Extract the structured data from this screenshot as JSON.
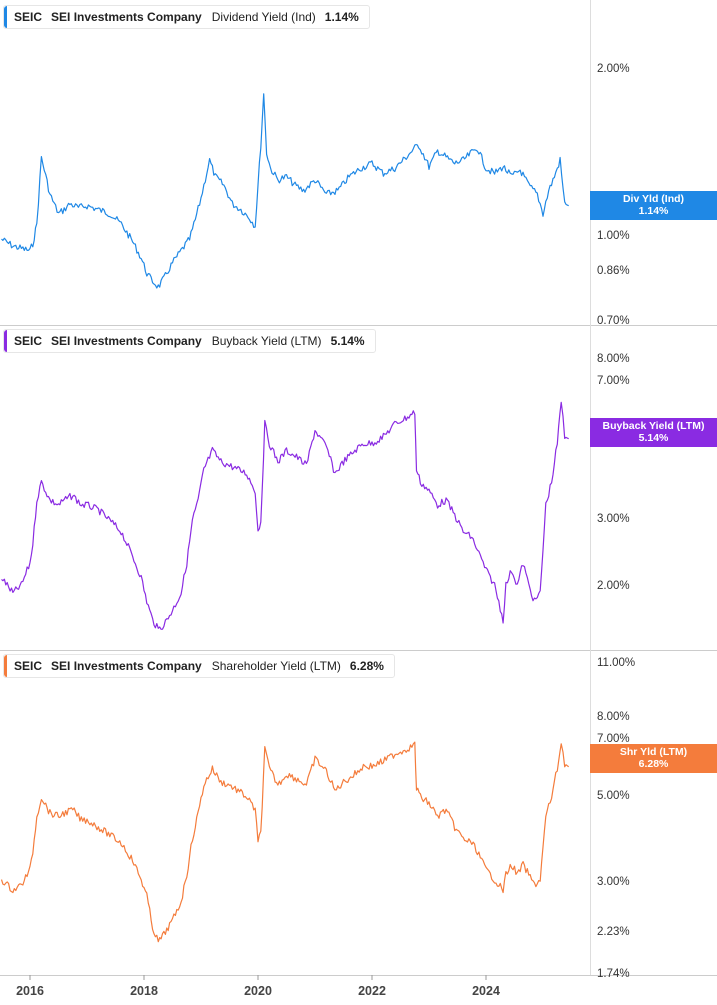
{
  "panels": [
    {
      "ticker": "SEIC",
      "company": "SEI Investments Company",
      "metric": "Dividend Yield (Ind)",
      "value": "1.14%",
      "color": "#1f88e5",
      "axis_ticks": [
        "2.00%",
        "1.00%",
        "0.86%",
        "0.70%"
      ],
      "badge": {
        "line1": "Div Yld (Ind)",
        "line2": "1.14%"
      }
    },
    {
      "ticker": "SEIC",
      "company": "SEI Investments Company",
      "metric": "Buyback Yield (LTM)",
      "value": "5.14%",
      "color": "#8a2be2",
      "axis_ticks": [
        "8.00%",
        "7.00%",
        "3.00%",
        "2.00%"
      ],
      "badge": {
        "line1": "Buyback Yield (LTM)",
        "line2": "5.14%"
      }
    },
    {
      "ticker": "SEIC",
      "company": "SEI Investments Company",
      "metric": "Shareholder Yield (LTM)",
      "value": "6.28%",
      "color": "#f47c3c",
      "axis_ticks": [
        "11.00%",
        "8.00%",
        "7.00%",
        "5.00%",
        "3.00%",
        "2.23%",
        "1.74%"
      ],
      "badge": {
        "line1": "Shr Yld (LTM)",
        "line2": "6.28%"
      }
    }
  ],
  "x_axis_labels": [
    "2016",
    "2018",
    "2020",
    "2022",
    "2024"
  ],
  "chart_data": [
    {
      "type": "line",
      "title": "SEIC SEI Investments Company Dividend Yield (Ind)",
      "y_scale": "log",
      "ylim": [
        0.68,
        2.5
      ],
      "x": [
        2015.5,
        2015.7,
        2015.85,
        2016.0,
        2016.05,
        2016.12,
        2016.2,
        2016.35,
        2016.5,
        2016.6,
        2016.7,
        2016.85,
        2017.0,
        2017.2,
        2017.4,
        2017.6,
        2017.8,
        2017.95,
        2018.05,
        2018.15,
        2018.25,
        2018.35,
        2018.5,
        2018.65,
        2018.8,
        2018.9,
        2019.0,
        2019.15,
        2019.25,
        2019.4,
        2019.55,
        2019.7,
        2019.85,
        2019.95,
        2020.05,
        2020.1,
        2020.15,
        2020.22,
        2020.35,
        2020.5,
        2020.65,
        2020.8,
        2021.0,
        2021.2,
        2021.4,
        2021.6,
        2021.8,
        2022.0,
        2022.2,
        2022.4,
        2022.6,
        2022.75,
        2022.82,
        2022.9,
        2023.0,
        2023.15,
        2023.3,
        2023.45,
        2023.6,
        2023.75,
        2023.85,
        2024.0,
        2024.15,
        2024.3,
        2024.45,
        2024.6,
        2024.75,
        2024.9,
        2025.0,
        2025.1,
        2025.2,
        2025.3,
        2025.38,
        2025.45
      ],
      "series": [
        {
          "values": [
            0.98,
            0.95,
            0.94,
            0.93,
            0.96,
            1.05,
            1.42,
            1.2,
            1.1,
            1.12,
            1.15,
            1.13,
            1.14,
            1.12,
            1.1,
            1.05,
            0.97,
            0.9,
            0.84,
            0.81,
            0.79,
            0.82,
            0.88,
            0.93,
            0.98,
            1.07,
            1.18,
            1.4,
            1.3,
            1.25,
            1.15,
            1.12,
            1.08,
            1.04,
            1.5,
            1.9,
            1.45,
            1.35,
            1.28,
            1.3,
            1.25,
            1.22,
            1.28,
            1.2,
            1.22,
            1.3,
            1.35,
            1.38,
            1.32,
            1.35,
            1.42,
            1.48,
            1.5,
            1.44,
            1.36,
            1.46,
            1.42,
            1.38,
            1.4,
            1.45,
            1.48,
            1.35,
            1.32,
            1.36,
            1.3,
            1.34,
            1.25,
            1.2,
            1.1,
            1.22,
            1.3,
            1.4,
            1.15,
            1.14
          ]
        }
      ]
    },
    {
      "type": "line",
      "title": "SEIC SEI Investments Company Buyback Yield (LTM)",
      "y_scale": "log",
      "ylim": [
        1.6,
        8.5
      ],
      "x": [
        2015.5,
        2015.7,
        2015.85,
        2016.0,
        2016.05,
        2016.12,
        2016.2,
        2016.35,
        2016.5,
        2016.6,
        2016.75,
        2016.9,
        2017.0,
        2017.2,
        2017.4,
        2017.6,
        2017.8,
        2017.95,
        2018.05,
        2018.15,
        2018.25,
        2018.35,
        2018.5,
        2018.65,
        2018.75,
        2018.85,
        2018.95,
        2019.05,
        2019.2,
        2019.35,
        2019.5,
        2019.65,
        2019.8,
        2019.95,
        2020.0,
        2020.05,
        2020.12,
        2020.2,
        2020.35,
        2020.5,
        2020.7,
        2020.85,
        2021.0,
        2021.2,
        2021.35,
        2021.5,
        2021.7,
        2021.85,
        2022.0,
        2022.2,
        2022.4,
        2022.6,
        2022.75,
        2022.78,
        2022.85,
        2023.0,
        2023.15,
        2023.3,
        2023.45,
        2023.6,
        2023.75,
        2023.85,
        2024.0,
        2024.15,
        2024.3,
        2024.35,
        2024.45,
        2024.55,
        2024.65,
        2024.75,
        2024.85,
        2024.95,
        2025.05,
        2025.15,
        2025.25,
        2025.32,
        2025.38,
        2025.45
      ],
      "series": [
        {
          "values": [
            2.3,
            2.1,
            2.2,
            2.5,
            2.8,
            3.6,
            4.0,
            3.6,
            3.5,
            3.6,
            3.7,
            3.5,
            3.5,
            3.4,
            3.2,
            3.0,
            2.6,
            2.3,
            2.0,
            1.8,
            1.7,
            1.75,
            1.9,
            2.1,
            2.5,
            3.2,
            3.6,
            4.3,
            4.8,
            4.5,
            4.4,
            4.3,
            4.2,
            3.8,
            3.0,
            3.2,
            5.6,
            5.0,
            4.5,
            4.8,
            4.6,
            4.4,
            5.4,
            4.9,
            4.2,
            4.5,
            4.8,
            5.0,
            5.0,
            5.2,
            5.6,
            5.8,
            6.0,
            4.3,
            4.0,
            3.8,
            3.5,
            3.6,
            3.3,
            3.0,
            2.9,
            2.7,
            2.4,
            2.2,
            1.8,
            2.2,
            2.4,
            2.2,
            2.5,
            2.2,
            2.0,
            2.1,
            3.5,
            4.0,
            5.0,
            6.4,
            5.2,
            5.14
          ]
        }
      ]
    },
    {
      "type": "line",
      "title": "SEIC SEI Investments Company Shareholder Yield (LTM)",
      "y_scale": "log",
      "ylim": [
        1.74,
        11.0
      ],
      "x": [
        2015.5,
        2015.7,
        2015.85,
        2016.0,
        2016.05,
        2016.12,
        2016.2,
        2016.35,
        2016.5,
        2016.6,
        2016.75,
        2016.9,
        2017.0,
        2017.2,
        2017.4,
        2017.6,
        2017.8,
        2017.95,
        2018.05,
        2018.15,
        2018.25,
        2018.35,
        2018.5,
        2018.65,
        2018.75,
        2018.85,
        2018.95,
        2019.05,
        2019.2,
        2019.35,
        2019.5,
        2019.65,
        2019.8,
        2019.95,
        2020.0,
        2020.05,
        2020.12,
        2020.2,
        2020.35,
        2020.5,
        2020.7,
        2020.85,
        2021.0,
        2021.2,
        2021.35,
        2021.5,
        2021.7,
        2021.85,
        2022.0,
        2022.2,
        2022.4,
        2022.6,
        2022.75,
        2022.78,
        2022.85,
        2023.0,
        2023.15,
        2023.3,
        2023.45,
        2023.6,
        2023.75,
        2023.85,
        2024.0,
        2024.15,
        2024.3,
        2024.35,
        2024.45,
        2024.55,
        2024.65,
        2024.75,
        2024.85,
        2024.95,
        2025.05,
        2025.15,
        2025.25,
        2025.32,
        2025.38,
        2025.45
      ],
      "series": [
        {
          "values": [
            3.1,
            2.9,
            3.0,
            3.3,
            3.7,
            4.6,
            5.2,
            4.7,
            4.6,
            4.7,
            4.8,
            4.5,
            4.5,
            4.3,
            4.1,
            3.9,
            3.5,
            3.1,
            2.8,
            2.3,
            2.1,
            2.2,
            2.4,
            2.7,
            3.2,
            4.0,
            4.7,
            5.6,
            6.2,
            5.7,
            5.6,
            5.4,
            5.2,
            4.8,
            3.9,
            4.2,
            7.0,
            6.2,
            5.6,
            6.0,
            5.8,
            5.6,
            6.6,
            6.1,
            5.4,
            5.7,
            6.0,
            6.3,
            6.3,
            6.5,
            6.8,
            7.0,
            7.2,
            5.5,
            5.2,
            5.0,
            4.6,
            4.8,
            4.3,
            4.0,
            3.9,
            3.7,
            3.3,
            3.1,
            2.9,
            3.2,
            3.4,
            3.2,
            3.4,
            3.2,
            3.0,
            3.1,
            4.6,
            5.2,
            6.2,
            7.3,
            6.4,
            6.28
          ]
        }
      ]
    }
  ]
}
